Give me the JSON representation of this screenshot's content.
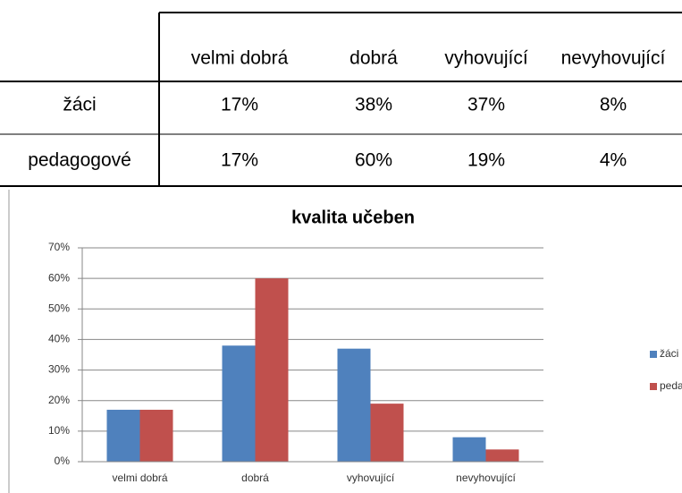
{
  "table": {
    "columns": [
      "velmi dobrá",
      "dobrá",
      "vyhovující",
      "nevyhovující"
    ],
    "rows": [
      {
        "label": "žáci",
        "cells": [
          "17%",
          "38%",
          "37%",
          "8%"
        ]
      },
      {
        "label": "pedagogové",
        "cells": [
          "17%",
          "60%",
          "19%",
          "4%"
        ]
      }
    ]
  },
  "chart_data": {
    "type": "bar",
    "title": "kvalita učeben",
    "categories": [
      "velmi dobrá",
      "dobrá",
      "vyhovující",
      "nevyhovující"
    ],
    "series": [
      {
        "name": "žáci",
        "color": "#4f81bd",
        "values": [
          17,
          38,
          37,
          8
        ]
      },
      {
        "name": "pedagogové",
        "color": "#c0504d",
        "values": [
          17,
          60,
          19,
          4
        ]
      }
    ],
    "ylim": [
      0,
      70
    ],
    "yticks": [
      {
        "value": 0,
        "label": "0%"
      },
      {
        "value": 10,
        "label": "10%"
      },
      {
        "value": 20,
        "label": "20%"
      },
      {
        "value": 30,
        "label": "30%"
      },
      {
        "value": 40,
        "label": "40%"
      },
      {
        "value": 50,
        "label": "50%"
      },
      {
        "value": 60,
        "label": "60%"
      },
      {
        "value": 70,
        "label": "70%"
      }
    ],
    "grid": true,
    "legend": "right"
  }
}
